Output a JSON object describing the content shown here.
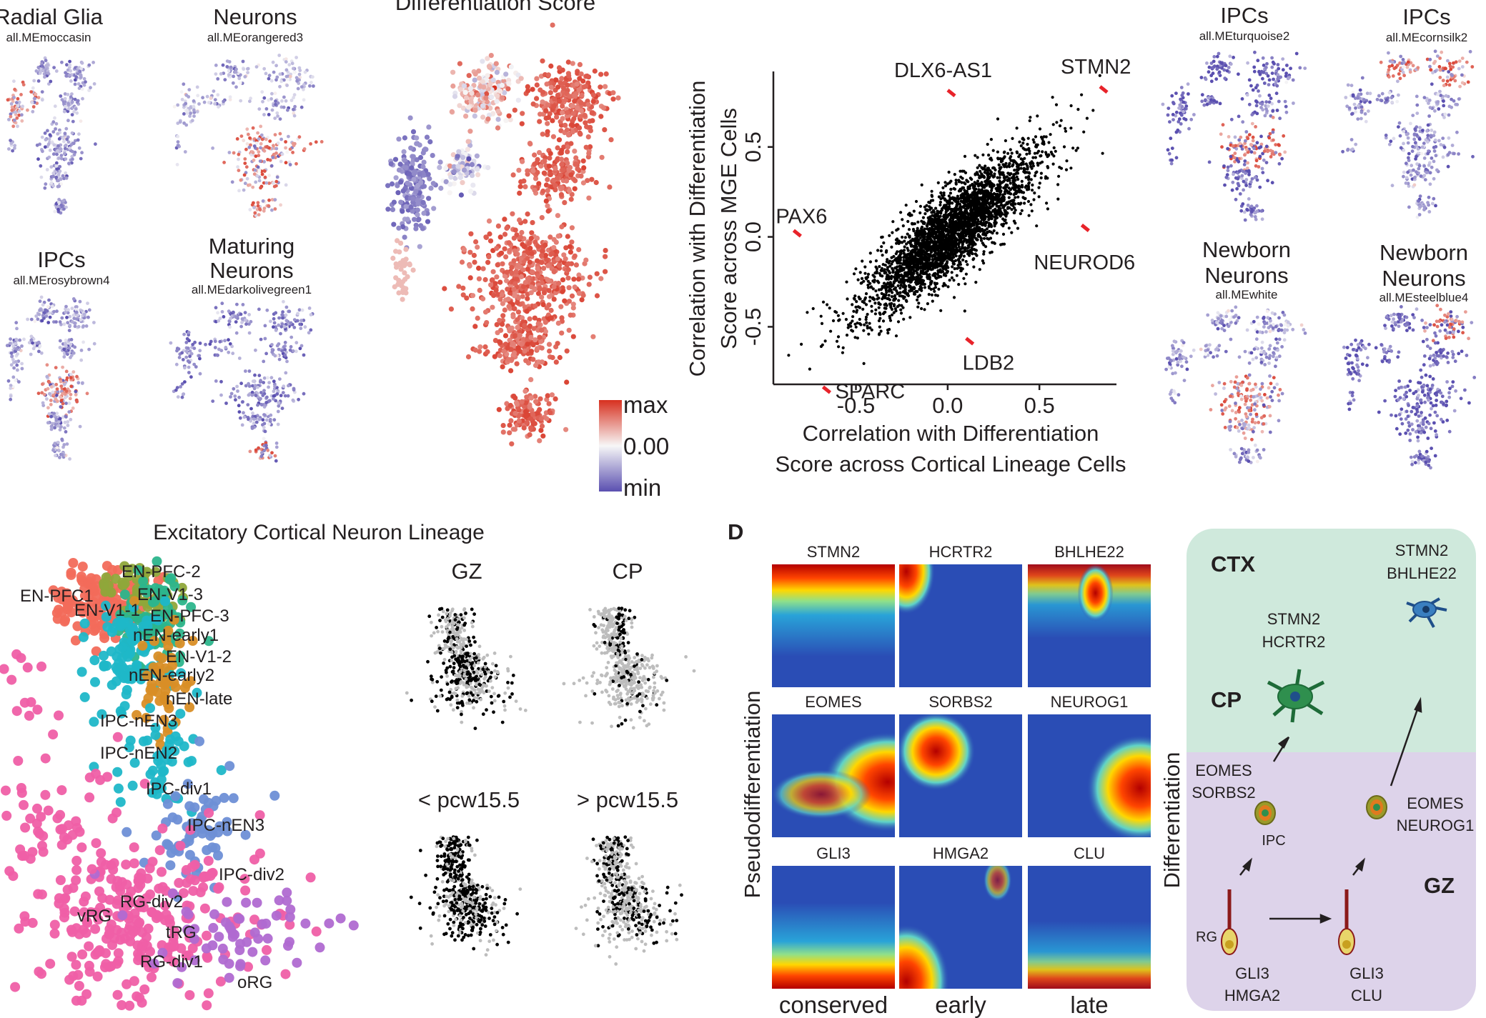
{
  "panelA": {
    "title_main": "Differentiation Score",
    "modules": [
      {
        "title": "Radial Glia",
        "sub": "all.MEmoccasin"
      },
      {
        "title": "Neurons",
        "sub": "all.MEorangered3"
      },
      {
        "title": "IPCs",
        "sub": "all.MErosybrown4"
      },
      {
        "title_l1": "Maturing",
        "title_l2": "Neurons",
        "sub": "all.MEdarkolivegreen1"
      },
      {
        "title": "IPCs",
        "sub": "all.MEturquoise2"
      },
      {
        "title": "IPCs",
        "sub": "all.MEcornsilk2"
      },
      {
        "title_l1": "Newborn",
        "title_l2": "Neurons",
        "sub": "all.MEwhite"
      },
      {
        "title_l1": "Newborn",
        "title_l2": "Neurons",
        "sub": "all.MEsteelblue4"
      }
    ],
    "colorbar": {
      "max": "max",
      "mid": "0.00",
      "min": "min",
      "colors": [
        "#d7301f",
        "#f7f7f7",
        "#5a4fb0"
      ]
    }
  },
  "scatter": {
    "ylabel_l1": "Correlation with Differentiation",
    "ylabel_l2": "Score across MGE Cells",
    "xlabel_l1": "Correlation with Differentiation",
    "xlabel_l2": "Score across Cortical Lineage Cells",
    "xticks": [
      "-0.5",
      "0.0",
      "0.5"
    ],
    "yticks": [
      "-0.5",
      "0.0",
      "0.5"
    ],
    "genes": [
      {
        "name": "DLX6-AS1",
        "x": 0.02,
        "y": 0.8
      },
      {
        "name": "STMN2",
        "x": 0.85,
        "y": 0.82
      },
      {
        "name": "PAX6",
        "x": -0.82,
        "y": 0.02
      },
      {
        "name": "NEUROD6",
        "x": 0.75,
        "y": 0.05
      },
      {
        "name": "LDB2",
        "x": 0.12,
        "y": -0.58
      },
      {
        "name": "SPARC",
        "x": -0.66,
        "y": -0.85
      }
    ]
  },
  "chart_data": {
    "type": "scatter",
    "title": "",
    "xlabel": "Correlation with Differentiation Score across Cortical Lineage Cells",
    "ylabel": "Correlation with Differentiation Score across MGE Cells",
    "xlim": [
      -0.95,
      0.92
    ],
    "ylim": [
      -0.82,
      0.92
    ],
    "series": [
      {
        "name": "",
        "points": [
          [
            0.02,
            0.8
          ],
          [
            0.85,
            0.82
          ],
          [
            -0.82,
            0.02
          ],
          [
            0.75,
            0.05
          ],
          [
            0.12,
            -0.58
          ],
          [
            -0.66,
            -0.85
          ]
        ]
      }
    ]
  },
  "panelC": {
    "title": "Excitatory Cortical Neuron Lineage",
    "clusters": [
      "EN-PFC-2",
      "EN-PFC1",
      "EN-V1-3",
      "EN-V1-1",
      "EN-PFC-3",
      "nEN-early1",
      "EN-V1-2",
      "nEN-early2",
      "nEN-late",
      "IPC-nEN3",
      "IPC-nEN2",
      "IPC-div1",
      "IPC-nEN3",
      "IPC-div2",
      "RG-div2",
      "vRG",
      "tRG",
      "RG-div1",
      "oRG"
    ],
    "sub_titles": [
      "GZ",
      "CP",
      "< pcw15.5",
      "> pcw15.5"
    ]
  },
  "panelD": {
    "letter": "D",
    "ylabel": "Pseudodifferentiation",
    "genes": [
      [
        "STMN2",
        "HCRTR2",
        "BHLHE22"
      ],
      [
        "EOMES",
        "SORBS2",
        "NEUROG1"
      ],
      [
        "GLI3",
        "HMGA2",
        "CLU"
      ]
    ],
    "columns": [
      "conserved",
      "early",
      "late"
    ]
  },
  "schematic": {
    "ctx": "CTX",
    "cp": "CP",
    "gz": "GZ",
    "ylabel": "Differentiation",
    "stmn2_bhlhe22": [
      "STMN2",
      "BHLHE22"
    ],
    "stmn2_hcrtr2": [
      "STMN2",
      "HCRTR2"
    ],
    "eomes_sorbs2": [
      "EOMES",
      "SORBS2"
    ],
    "eomes_neurog1": [
      "EOMES",
      "NEUROG1"
    ],
    "ipc": "IPC",
    "rg": "RG",
    "gli3_hmga2": [
      "GLI3",
      "HMGA2"
    ],
    "gli3_clu": [
      "GLI3",
      "CLU"
    ],
    "colors": {
      "ctx_bg": "#cfe9dc",
      "gz_bg": "#ddd3ea",
      "neuron_green": "#2f8f4e",
      "neuron_blue": "#3a7fc0"
    }
  }
}
